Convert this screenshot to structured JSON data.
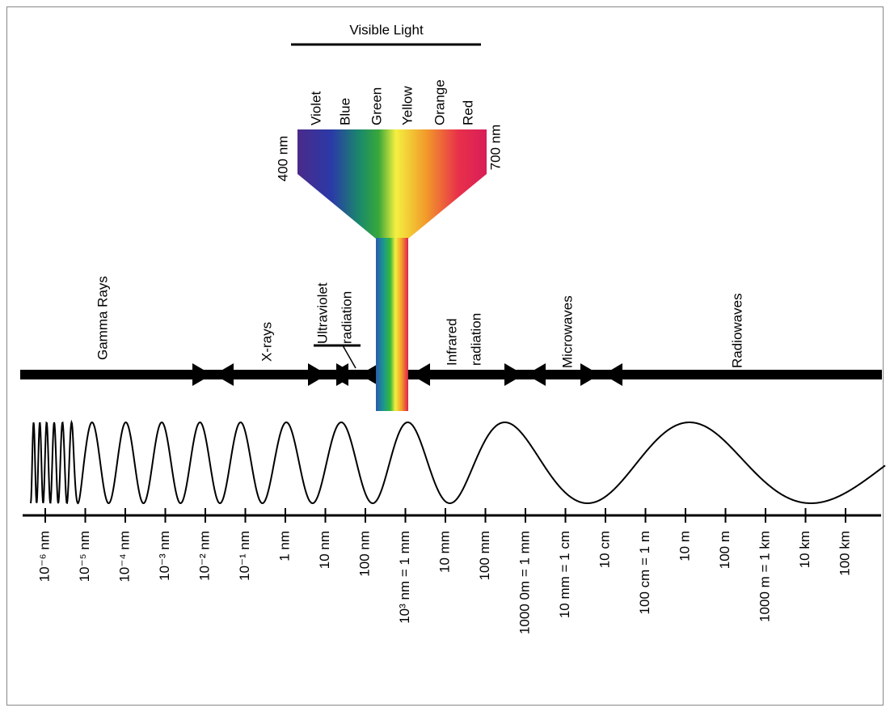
{
  "visible_light": {
    "title": "Visible Light",
    "colors": [
      "Violet",
      "Blue",
      "Green",
      "Yellow",
      "Orange",
      "Red"
    ],
    "min_label": "400 nm",
    "max_label": "700 nm"
  },
  "bands": [
    {
      "lines": [
        "Gamma Rays"
      ]
    },
    {
      "lines": [
        "X-rays"
      ]
    },
    {
      "lines": [
        "Ultraviolet",
        "radiation"
      ]
    },
    {
      "lines": [
        "Infrared",
        "radiation"
      ]
    },
    {
      "lines": [
        "Microwaves"
      ]
    },
    {
      "lines": [
        "Radiowaves"
      ]
    }
  ],
  "scale": [
    "10⁻⁶ nm",
    "10⁻⁵ nm",
    "10⁻⁴ nm",
    "10⁻³ nm",
    "10⁻² nm",
    "10⁻¹ nm",
    "1 nm",
    "10 nm",
    "100 nm",
    "10³ nm = 1 mm",
    "10 mm",
    "100 mm",
    "1000 0m = 1 mm",
    "10 mm = 1 cm",
    "10 cm",
    "100 cm = 1 m",
    "10 m",
    "100 m",
    "1000 m = 1 km",
    "10 km",
    "100 km"
  ]
}
